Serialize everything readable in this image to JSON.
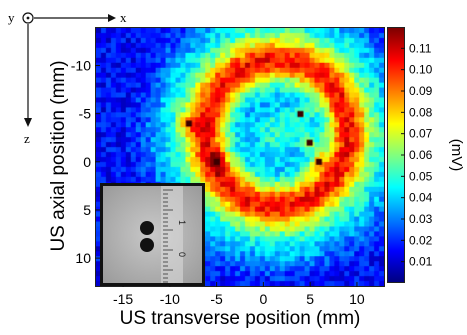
{
  "chart_data": {
    "type": "heatmap",
    "xlabel": "US transverse position (mm)",
    "ylabel": "US axial position (mm)",
    "x_ticks": [
      -15,
      -10,
      -5,
      0,
      5,
      10
    ],
    "y_ticks": [
      -10,
      -5,
      0,
      5,
      10
    ],
    "xlim": [
      -18,
      13
    ],
    "ylim": [
      -14,
      13
    ],
    "colorbar": {
      "label": "(mV)",
      "ticks": [
        "0.11",
        "0.10",
        "0.09",
        "0.08",
        "0.07",
        "0.06",
        "0.05",
        "0.04",
        "0.03",
        "0.02",
        "0.01"
      ],
      "range": [
        0,
        0.12
      ]
    },
    "ring": {
      "center_x": 1.5,
      "center_y": -3,
      "inner_radius": 5.5,
      "outer_radius": 9.5,
      "peak_value": 0.115,
      "background_value": 0.015
    },
    "hotspots": [
      {
        "x": -8,
        "y": -4,
        "value": 0.115
      },
      {
        "x": -5,
        "y": 0,
        "value": 0.115
      },
      {
        "x": 4,
        "y": -5,
        "value": 0.11
      },
      {
        "x": 5,
        "y": -2,
        "value": 0.11
      },
      {
        "x": 6,
        "y": 0,
        "value": 0.11
      }
    ],
    "axis_labels": {
      "x_arrow": "x",
      "y_symbol": "y",
      "z_arrow": "z"
    },
    "inset": {
      "ruler_labels": [
        "1",
        "0"
      ]
    }
  }
}
